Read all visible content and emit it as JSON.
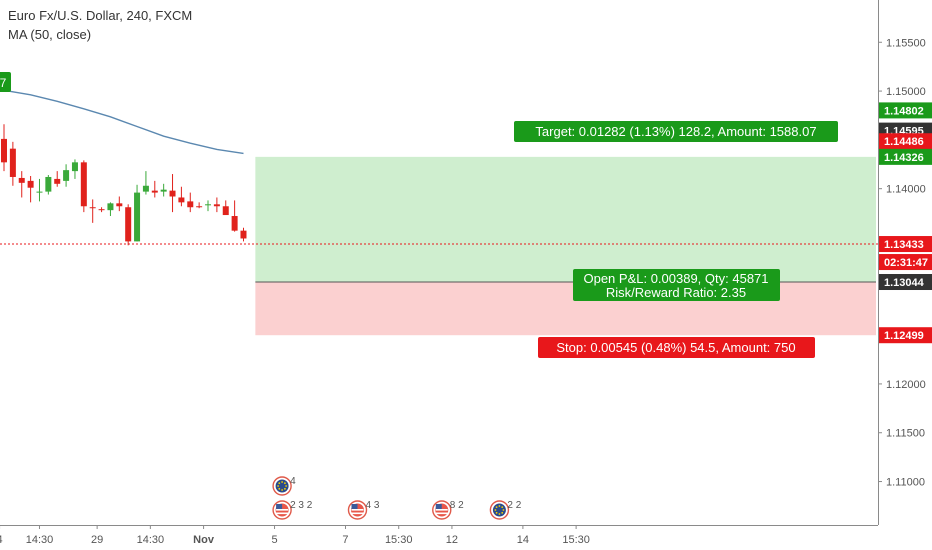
{
  "header": {
    "title": "Euro Fx/U.S. Dollar, 240, FXCM",
    "indicator": "MA (50, close)"
  },
  "colors": {
    "up": "#3aa93a",
    "down": "#e0221c",
    "ma": "#5b88b0",
    "target_zone": "#cfeecf",
    "stop_zone": "#fbd0d0",
    "target_label": "#1a9a1a",
    "stop_label": "#e8171b",
    "current_price_line": "#e8171b",
    "axis_text": "#555555"
  },
  "chart_data": {
    "type": "candlestick",
    "title": "Euro Fx/U.S. Dollar, 240, FXCM",
    "ylim": [
      1.10606,
      1.15851
    ],
    "y_ticks": [
      1.11,
      1.115,
      1.12,
      1.14,
      1.145,
      1.15,
      1.155
    ],
    "y_tick_labels": [
      "1.11000",
      "1.11500",
      "1.12000",
      "1.14000",
      "1.14500",
      "1.15000",
      "1.15500"
    ],
    "x_ticks": [
      {
        "label": "4",
        "bar": -0.5
      },
      {
        "label": "14:30",
        "bar": 4
      },
      {
        "label": "29",
        "bar": 10.5
      },
      {
        "label": "14:30",
        "bar": 16.5
      },
      {
        "label": "Nov",
        "bar": 22.5,
        "bold": true
      },
      {
        "label": "5",
        "bar": 30.5
      },
      {
        "label": "7",
        "bar": 38.5
      },
      {
        "label": "15:30",
        "bar": 44.5
      },
      {
        "label": "12",
        "bar": 50.5
      },
      {
        "label": "14",
        "bar": 58.5
      },
      {
        "label": "15:30",
        "bar": 64.5
      }
    ],
    "candles": [
      {
        "o": 1.1451,
        "h": 1.1466,
        "l": 1.1418,
        "c": 1.1427
      },
      {
        "o": 1.1441,
        "h": 1.1448,
        "l": 1.1403,
        "c": 1.1412
      },
      {
        "o": 1.1411,
        "h": 1.1418,
        "l": 1.1391,
        "c": 1.1406
      },
      {
        "o": 1.1408,
        "h": 1.1413,
        "l": 1.1386,
        "c": 1.1401
      },
      {
        "o": 1.1397,
        "h": 1.141,
        "l": 1.1387,
        "c": 1.1397
      },
      {
        "o": 1.1397,
        "h": 1.1414,
        "l": 1.1394,
        "c": 1.1412
      },
      {
        "o": 1.141,
        "h": 1.1418,
        "l": 1.1402,
        "c": 1.1405
      },
      {
        "o": 1.1408,
        "h": 1.1425,
        "l": 1.1402,
        "c": 1.1419
      },
      {
        "o": 1.1418,
        "h": 1.143,
        "l": 1.141,
        "c": 1.1427
      },
      {
        "o": 1.1427,
        "h": 1.1429,
        "l": 1.1376,
        "c": 1.1382
      },
      {
        "o": 1.1381,
        "h": 1.1389,
        "l": 1.1365,
        "c": 1.138
      },
      {
        "o": 1.1379,
        "h": 1.1381,
        "l": 1.1376,
        "c": 1.1378
      },
      {
        "o": 1.1378,
        "h": 1.1386,
        "l": 1.1372,
        "c": 1.1385
      },
      {
        "o": 1.1385,
        "h": 1.1392,
        "l": 1.1377,
        "c": 1.1382
      },
      {
        "o": 1.1381,
        "h": 1.1384,
        "l": 1.1342,
        "c": 1.1346
      },
      {
        "o": 1.1346,
        "h": 1.1404,
        "l": 1.1346,
        "c": 1.1396
      },
      {
        "o": 1.1397,
        "h": 1.1418,
        "l": 1.1394,
        "c": 1.1403
      },
      {
        "o": 1.1398,
        "h": 1.1408,
        "l": 1.1391,
        "c": 1.1396
      },
      {
        "o": 1.1397,
        "h": 1.1405,
        "l": 1.1392,
        "c": 1.1399
      },
      {
        "o": 1.1398,
        "h": 1.1415,
        "l": 1.1376,
        "c": 1.1392
      },
      {
        "o": 1.1391,
        "h": 1.1402,
        "l": 1.1382,
        "c": 1.1386
      },
      {
        "o": 1.1387,
        "h": 1.1396,
        "l": 1.1376,
        "c": 1.1381
      },
      {
        "o": 1.1382,
        "h": 1.1386,
        "l": 1.138,
        "c": 1.1381
      },
      {
        "o": 1.1383,
        "h": 1.1388,
        "l": 1.1377,
        "c": 1.1384
      },
      {
        "o": 1.1384,
        "h": 1.1391,
        "l": 1.1376,
        "c": 1.1382
      },
      {
        "o": 1.1382,
        "h": 1.1388,
        "l": 1.1377,
        "c": 1.1373
      },
      {
        "o": 1.1372,
        "h": 1.1388,
        "l": 1.1356,
        "c": 1.1357
      },
      {
        "o": 1.1357,
        "h": 1.136,
        "l": 1.1346,
        "c": 1.1349
      }
    ],
    "ma_series": [
      {
        "bar": 0,
        "y": 1.15008
      },
      {
        "bar": 3,
        "y": 1.14962
      },
      {
        "bar": 6,
        "y": 1.14895
      },
      {
        "bar": 9,
        "y": 1.14818
      },
      {
        "bar": 12,
        "y": 1.14736
      },
      {
        "bar": 15,
        "y": 1.14637
      },
      {
        "bar": 18,
        "y": 1.14538
      },
      {
        "bar": 21,
        "y": 1.14466
      },
      {
        "bar": 24,
        "y": 1.14402
      },
      {
        "bar": 27,
        "y": 1.14362
      }
    ],
    "last_price": 1.13433,
    "countdown": "02:31:47",
    "price_labels": [
      {
        "text": "1.14802",
        "value": 1.14802,
        "color": "#1a9a1a"
      },
      {
        "text": "1.14595",
        "value": 1.14595,
        "color": "#333333"
      },
      {
        "text": "1.14486",
        "value": 1.14486,
        "color": "#e8171b"
      },
      {
        "text": "1.14326",
        "value": 1.14326,
        "color": "#1a9a1a"
      },
      {
        "text": "1.13433",
        "value": 1.13433,
        "color": "#e8171b"
      },
      {
        "text": "1.13044",
        "value": 1.13044,
        "color": "#333333"
      },
      {
        "text": "1.12499",
        "value": 1.12499,
        "color": "#e8171b"
      }
    ],
    "position": {
      "entry": 1.13044,
      "target": 1.14326,
      "stop": 1.12499,
      "start_bar": 28,
      "target_label": "Target: 0.01282 (1.13%) 128.2, Amount: 1588.07",
      "stop_label": "Stop: 0.00545 (0.48%) 54.5, Amount: 750",
      "pnl_label": "Open P&L: 0.00389, Qty: 45871",
      "ratio_label": "Risk/Reward Ratio: 2.35"
    },
    "left_label": "7",
    "events": [
      {
        "bar": 30.0,
        "row": 1,
        "flag": "eu",
        "count": "4"
      },
      {
        "bar": 30.0,
        "row": 0,
        "flag": "us",
        "count": "232"
      },
      {
        "bar": 38.5,
        "row": 0,
        "flag": "us",
        "count": "43"
      },
      {
        "bar": 48.0,
        "row": 0,
        "flag": "us",
        "count": "82"
      },
      {
        "bar": 54.5,
        "row": 0,
        "flag": "eu",
        "count": "22"
      }
    ]
  }
}
